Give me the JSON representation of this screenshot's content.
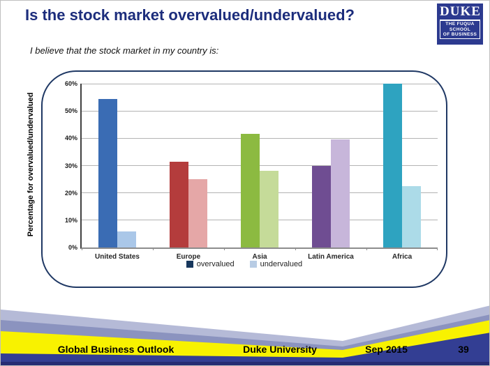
{
  "slide": {
    "title": "Is the stock market overvalued/undervalued?",
    "subtitle": "I believe that the stock market in my country is:"
  },
  "logo": {
    "name": "DUKE",
    "sub_lines": [
      "THE FUQUA",
      "SCHOOL",
      "OF BUSINESS"
    ],
    "bg_color": "#2c3a8f"
  },
  "chart_data": {
    "type": "bar",
    "title": "",
    "categories": [
      "United States",
      "Europe",
      "Asia",
      "Latin America",
      "Africa"
    ],
    "series": [
      {
        "name": "overvalued",
        "values": [
          54.5,
          31.3,
          41.5,
          30.0,
          60.0
        ],
        "colors": [
          "#3a6cb4",
          "#b43c3c",
          "#8cba41",
          "#6f4d92",
          "#2ea3c0"
        ],
        "legend_color": "#17375d"
      },
      {
        "name": "undervalued",
        "values": [
          5.9,
          24.9,
          28.1,
          39.6,
          22.4
        ],
        "colors": [
          "#aac7e8",
          "#e5a7a7",
          "#c5db99",
          "#c7b6da",
          "#acdbe8"
        ],
        "legend_color": "#b8cce4"
      }
    ],
    "xlabel": "",
    "ylabel": "Percentage for overvalued/undervalued",
    "ylim": [
      0,
      60
    ],
    "ytick_step": 10,
    "ytick_suffix": "%",
    "grid": true,
    "legend_position": "bottom"
  },
  "footer": {
    "items": [
      "Global Business Outlook",
      "Duke University",
      "Sep 2015"
    ],
    "page_number": "39",
    "band_colors": [
      "#b5bad7",
      "#8b93bf",
      "#f8f200",
      "#333e93",
      "#262c73"
    ]
  }
}
